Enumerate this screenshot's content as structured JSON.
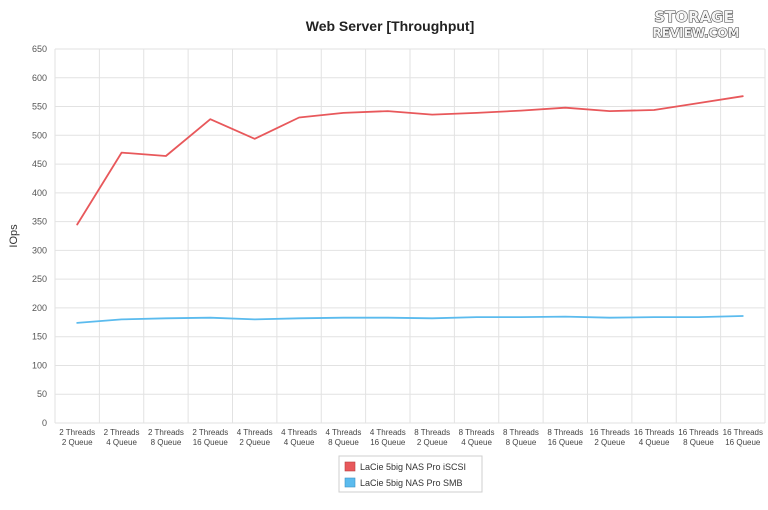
{
  "logo": {
    "line1": "STORAGE",
    "line2": "REVIEW.COM"
  },
  "chart_data": {
    "type": "line",
    "title": "Web Server [Throughput]",
    "ylabel": "IOps",
    "xlabel": "",
    "ylim": [
      0,
      650
    ],
    "yticks": [
      0,
      50,
      100,
      150,
      200,
      250,
      300,
      350,
      400,
      450,
      500,
      550,
      600,
      650
    ],
    "grid": true,
    "legend_position": "bottom",
    "categories": [
      [
        "2 Threads",
        "2 Queue"
      ],
      [
        "2 Threads",
        "4 Queue"
      ],
      [
        "2 Threads",
        "8 Queue"
      ],
      [
        "2 Threads",
        "16 Queue"
      ],
      [
        "4 Threads",
        "2 Queue"
      ],
      [
        "4 Threads",
        "4 Queue"
      ],
      [
        "4 Threads",
        "8 Queue"
      ],
      [
        "4 Threads",
        "16 Queue"
      ],
      [
        "8 Threads",
        "2 Queue"
      ],
      [
        "8 Threads",
        "4 Queue"
      ],
      [
        "8 Threads",
        "8 Queue"
      ],
      [
        "8 Threads",
        "16 Queue"
      ],
      [
        "16 Threads",
        "2 Queue"
      ],
      [
        "16 Threads",
        "4 Queue"
      ],
      [
        "16 Threads",
        "8 Queue"
      ],
      [
        "16 Threads",
        "16 Queue"
      ]
    ],
    "series": [
      {
        "name": "LaCie 5big NAS Pro iSCSI",
        "color": "#e8585b",
        "values": [
          345,
          470,
          464,
          528,
          494,
          531,
          539,
          542,
          536,
          539,
          543,
          548,
          542,
          544,
          556,
          568
        ]
      },
      {
        "name": "LaCie 5big NAS Pro SMB",
        "color": "#5bbbee",
        "values": [
          174,
          180,
          182,
          183,
          180,
          182,
          183,
          183,
          182,
          184,
          184,
          185,
          183,
          184,
          184,
          186
        ]
      }
    ]
  }
}
